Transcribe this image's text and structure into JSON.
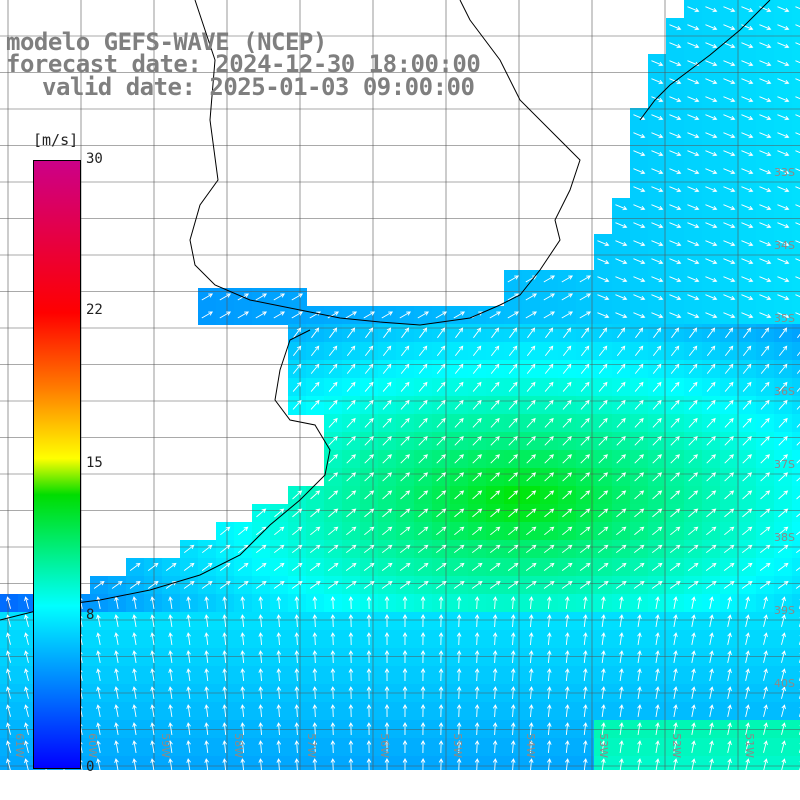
{
  "title": {
    "model": "modelo GEFS-WAVE (NCEP)",
    "forecast": "forecast date: 2024-12-30 18:00:00",
    "valid": "valid date: 2025-01-03 09:00:00"
  },
  "colorbar": {
    "unit": "[m/s]",
    "ticks": [
      "30",
      "22",
      "15",
      "8",
      "0"
    ],
    "colors": [
      "#0000ff",
      "#00aaff",
      "#00ffff",
      "#00dd00",
      "#ffff00",
      "#ff7700",
      "#ff0000",
      "#cc0088"
    ]
  },
  "latitude_labels": [
    "33S",
    "34S",
    "35S",
    "36S",
    "37S",
    "38S",
    "39S",
    "40S"
  ],
  "longitude_labels": [
    "61W",
    "60W",
    "59W",
    "58W",
    "57W",
    "56W",
    "55W",
    "54W",
    "53W",
    "52W",
    "51W"
  ],
  "map_colors": {
    "land": "#ffffff",
    "grid": "#444444",
    "coast": "#000000",
    "arrow": "#ffffff"
  }
}
